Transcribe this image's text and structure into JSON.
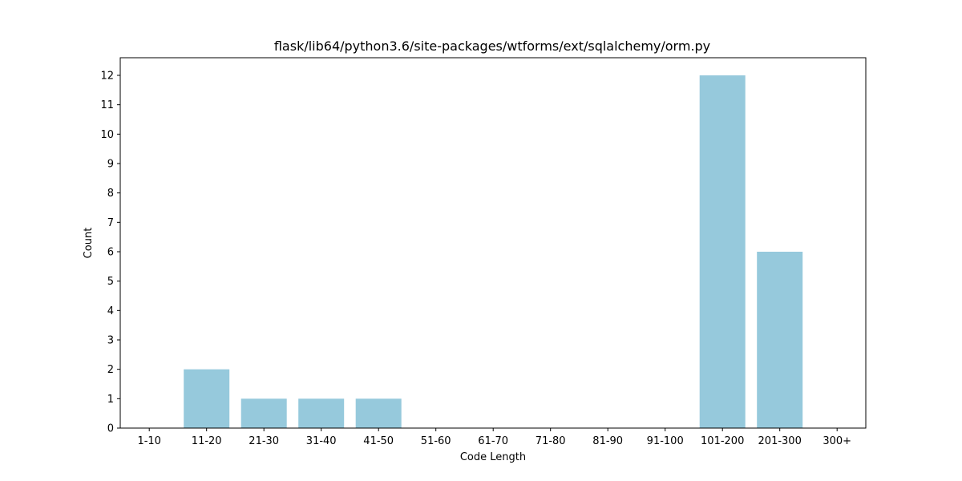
{
  "chart_data": {
    "type": "bar",
    "title": "flask/lib64/python3.6/site-packages/wtforms/ext/sqlalchemy/orm.py",
    "xlabel": "Code Length",
    "ylabel": "Count",
    "categories": [
      "1-10",
      "11-20",
      "21-30",
      "31-40",
      "41-50",
      "51-60",
      "61-70",
      "71-80",
      "81-90",
      "91-100",
      "101-200",
      "201-300",
      "300+"
    ],
    "values": [
      0,
      2,
      1,
      1,
      1,
      0,
      0,
      0,
      0,
      0,
      12,
      6,
      0
    ],
    "ylim": [
      0,
      12.6
    ],
    "yticks": [
      0,
      1,
      2,
      3,
      4,
      5,
      6,
      7,
      8,
      9,
      10,
      11,
      12
    ],
    "bar_color": "#96c9dc",
    "grid": false
  }
}
